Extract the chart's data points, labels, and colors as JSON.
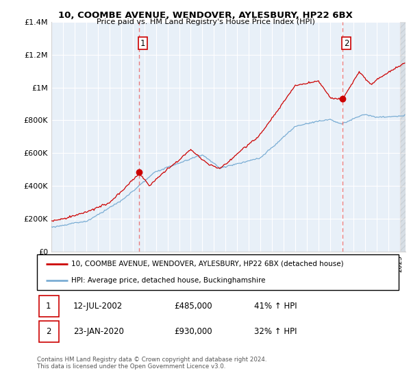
{
  "title": "10, COOMBE AVENUE, WENDOVER, AYLESBURY, HP22 6BX",
  "subtitle": "Price paid vs. HM Land Registry's House Price Index (HPI)",
  "legend_line1": "10, COOMBE AVENUE, WENDOVER, AYLESBURY, HP22 6BX (detached house)",
  "legend_line2": "HPI: Average price, detached house, Buckinghamshire",
  "transaction1_date": "12-JUL-2002",
  "transaction1_price": "£485,000",
  "transaction1_hpi": "41% ↑ HPI",
  "transaction2_date": "23-JAN-2020",
  "transaction2_price": "£930,000",
  "transaction2_hpi": "32% ↑ HPI",
  "footer": "Contains HM Land Registry data © Crown copyright and database right 2024.\nThis data is licensed under the Open Government Licence v3.0.",
  "hpi_color": "#7aadd4",
  "price_color": "#cc0000",
  "dashed_line_color": "#e87070",
  "plot_bg_color": "#e8f0f8",
  "ylim": [
    0,
    1400000
  ],
  "yticks": [
    0,
    200000,
    400000,
    600000,
    800000,
    1000000,
    1200000,
    1400000
  ],
  "ytick_labels": [
    "£0",
    "£200K",
    "£400K",
    "£600K",
    "£800K",
    "£1M",
    "£1.2M",
    "£1.4M"
  ],
  "transaction1_x": 2002.54,
  "transaction1_y": 485000,
  "transaction2_x": 2020.06,
  "transaction2_y": 930000,
  "xmin": 1995.0,
  "xmax": 2025.5
}
